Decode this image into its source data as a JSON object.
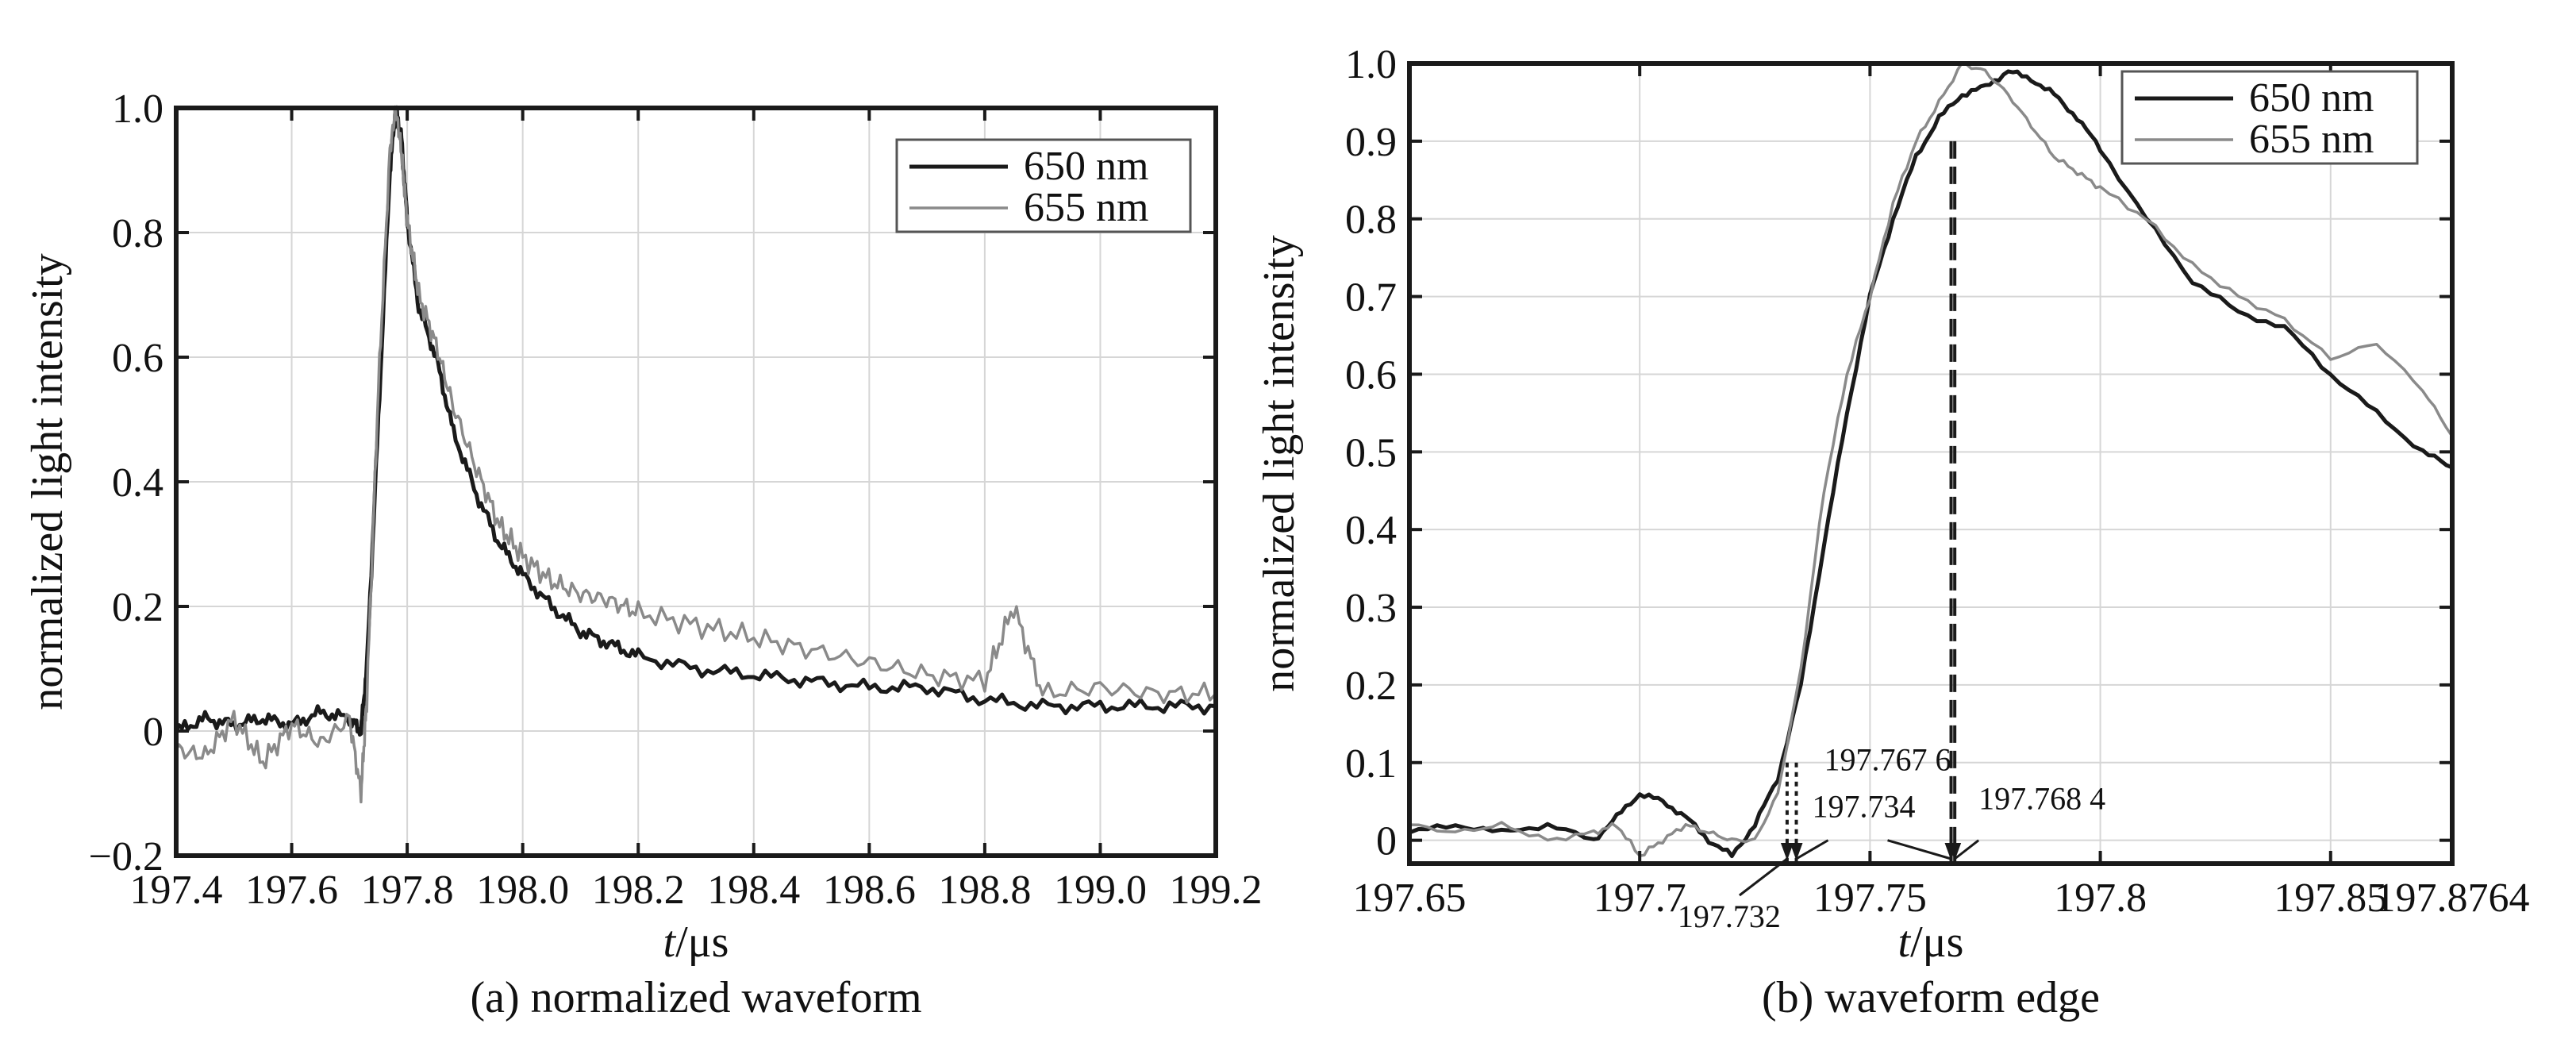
{
  "chart_data": [
    {
      "type": "line",
      "caption": "(a) normalized waveform",
      "xlabel": "t/μs",
      "ylabel": "normalized light intensity",
      "xlim": [
        197.4,
        199.2
      ],
      "ylim": [
        -0.2,
        1.0
      ],
      "xticks": [
        197.4,
        197.6,
        197.8,
        198.0,
        198.2,
        198.4,
        198.6,
        198.8,
        199.0,
        199.2
      ],
      "xtick_labels": [
        "197.4",
        "197.6",
        "197.8",
        "198.0",
        "198.2",
        "198.4",
        "198.6",
        "198.8",
        "199.0",
        "199.2"
      ],
      "yticks": [
        -0.2,
        0,
        0.2,
        0.4,
        0.6,
        0.8,
        1.0
      ],
      "ytick_labels": [
        "−0.2",
        "0",
        "0.2",
        "0.4",
        "0.6",
        "0.8",
        "1.0"
      ],
      "grid": true,
      "legend_position": "top-right",
      "series": [
        {
          "name": "650 nm",
          "color": "#1a1a1a",
          "x": [
            197.4,
            197.45,
            197.5,
            197.55,
            197.6,
            197.65,
            197.7,
            197.72,
            197.73,
            197.75,
            197.77,
            197.78,
            197.79,
            197.8,
            197.82,
            197.85,
            197.88,
            197.92,
            197.96,
            198.0,
            198.05,
            198.1,
            198.15,
            198.2,
            198.3,
            198.4,
            198.5,
            198.6,
            198.7,
            198.8,
            198.9,
            199.0,
            199.1,
            199.2
          ],
          "y": [
            0.0,
            0.02,
            0.01,
            0.02,
            0.01,
            0.03,
            0.02,
            0.0,
            0.1,
            0.5,
            0.9,
            1.0,
            0.95,
            0.82,
            0.68,
            0.6,
            0.48,
            0.38,
            0.3,
            0.25,
            0.2,
            0.16,
            0.14,
            0.12,
            0.1,
            0.09,
            0.08,
            0.07,
            0.07,
            0.05,
            0.04,
            0.04,
            0.04,
            0.04
          ]
        },
        {
          "name": "655 nm",
          "color": "#8a8a8a",
          "x": [
            197.4,
            197.45,
            197.5,
            197.55,
            197.6,
            197.65,
            197.7,
            197.72,
            197.73,
            197.75,
            197.77,
            197.78,
            197.79,
            197.8,
            197.82,
            197.85,
            197.88,
            197.92,
            197.96,
            198.0,
            198.05,
            198.1,
            198.15,
            198.2,
            198.3,
            198.4,
            198.5,
            198.6,
            198.7,
            198.8,
            198.85,
            198.9,
            199.0,
            199.1,
            199.2
          ],
          "y": [
            -0.03,
            -0.04,
            0.02,
            -0.05,
            0.01,
            -0.02,
            0.02,
            -0.1,
            0.05,
            0.55,
            0.93,
            1.0,
            0.93,
            0.82,
            0.7,
            0.62,
            0.52,
            0.42,
            0.33,
            0.28,
            0.24,
            0.22,
            0.21,
            0.19,
            0.17,
            0.15,
            0.13,
            0.11,
            0.09,
            0.08,
            0.2,
            0.06,
            0.07,
            0.06,
            0.06
          ]
        }
      ]
    },
    {
      "type": "line",
      "caption": "(b) waveform edge",
      "xlabel": "t/μs",
      "ylabel": "normalized light intensity",
      "xlim": [
        197.65,
        197.8764
      ],
      "ylim": [
        -0.03,
        1.0
      ],
      "xticks": [
        197.65,
        197.7,
        197.75,
        197.8,
        197.85,
        197.8764
      ],
      "xtick_labels": [
        "197.65",
        "197.7",
        "197.75",
        "197.8",
        "197.85",
        "197.8764"
      ],
      "yticks": [
        0,
        0.1,
        0.2,
        0.3,
        0.4,
        0.5,
        0.6,
        0.7,
        0.8,
        0.9,
        1.0
      ],
      "ytick_labels": [
        "0",
        "0.1",
        "0.2",
        "0.3",
        "0.4",
        "0.5",
        "0.6",
        "0.7",
        "0.8",
        "0.9",
        "1.0"
      ],
      "grid": true,
      "legend_position": "top-right",
      "annotations": [
        {
          "text": "197.732",
          "x": 197.732
        },
        {
          "text": "197.734",
          "x": 197.734
        },
        {
          "text": "197.767 6",
          "x": 197.7676
        },
        {
          "text": "197.768 4",
          "x": 197.7684
        }
      ],
      "series": [
        {
          "name": "650 nm",
          "color": "#1a1a1a",
          "x": [
            197.65,
            197.66,
            197.67,
            197.68,
            197.69,
            197.695,
            197.7,
            197.705,
            197.71,
            197.715,
            197.72,
            197.725,
            197.73,
            197.735,
            197.74,
            197.745,
            197.75,
            197.755,
            197.76,
            197.765,
            197.77,
            197.775,
            197.78,
            197.785,
            197.79,
            197.795,
            197.8,
            197.81,
            197.82,
            197.83,
            197.84,
            197.85,
            197.86,
            197.87,
            197.8764
          ],
          "y": [
            0.01,
            0.02,
            0.01,
            0.02,
            0.0,
            0.03,
            0.06,
            0.05,
            0.03,
            0.0,
            -0.02,
            0.02,
            0.08,
            0.2,
            0.38,
            0.55,
            0.7,
            0.8,
            0.88,
            0.93,
            0.96,
            0.97,
            0.99,
            0.98,
            0.96,
            0.93,
            0.89,
            0.8,
            0.72,
            0.68,
            0.66,
            0.6,
            0.55,
            0.5,
            0.48
          ]
        },
        {
          "name": "655 nm",
          "color": "#8a8a8a",
          "x": [
            197.65,
            197.66,
            197.67,
            197.68,
            197.69,
            197.695,
            197.7,
            197.705,
            197.71,
            197.715,
            197.72,
            197.725,
            197.73,
            197.735,
            197.74,
            197.745,
            197.75,
            197.755,
            197.76,
            197.765,
            197.77,
            197.775,
            197.78,
            197.785,
            197.79,
            197.795,
            197.8,
            197.81,
            197.82,
            197.83,
            197.84,
            197.85,
            197.86,
            197.87,
            197.8764
          ],
          "y": [
            0.02,
            0.01,
            0.02,
            0.0,
            0.01,
            0.02,
            -0.02,
            0.0,
            0.02,
            0.01,
            0.0,
            0.0,
            0.06,
            0.22,
            0.45,
            0.6,
            0.7,
            0.82,
            0.9,
            0.95,
            1.0,
            0.99,
            0.96,
            0.92,
            0.88,
            0.86,
            0.84,
            0.8,
            0.74,
            0.7,
            0.67,
            0.62,
            0.64,
            0.58,
            0.52
          ]
        }
      ]
    }
  ]
}
